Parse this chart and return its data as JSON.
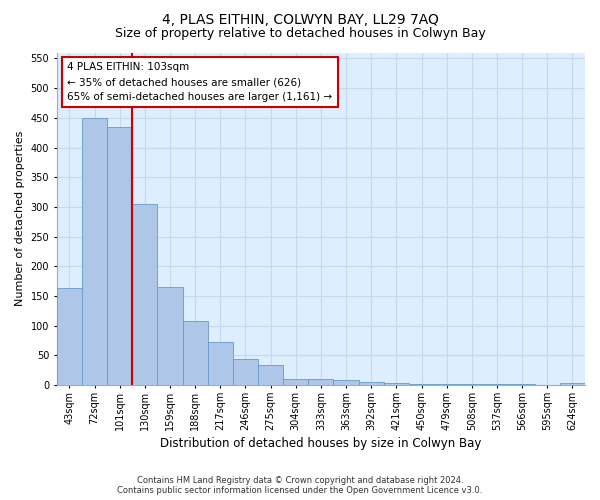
{
  "title": "4, PLAS EITHIN, COLWYN BAY, LL29 7AQ",
  "subtitle": "Size of property relative to detached houses in Colwyn Bay",
  "xlabel": "Distribution of detached houses by size in Colwyn Bay",
  "ylabel": "Number of detached properties",
  "categories": [
    "43sqm",
    "72sqm",
    "101sqm",
    "130sqm",
    "159sqm",
    "188sqm",
    "217sqm",
    "246sqm",
    "275sqm",
    "304sqm",
    "333sqm",
    "363sqm",
    "392sqm",
    "421sqm",
    "450sqm",
    "479sqm",
    "508sqm",
    "537sqm",
    "566sqm",
    "595sqm",
    "624sqm"
  ],
  "values": [
    163,
    450,
    435,
    305,
    165,
    107,
    73,
    44,
    33,
    10,
    10,
    8,
    5,
    3,
    2,
    1,
    1,
    1,
    1,
    0,
    4
  ],
  "bar_color": "#aec6e8",
  "bar_edge_color": "#6699cc",
  "vline_color": "#cc0000",
  "vline_index": 2,
  "annotation_text": "4 PLAS EITHIN: 103sqm\n← 35% of detached houses are smaller (626)\n65% of semi-detached houses are larger (1,161) →",
  "annotation_box_facecolor": "#ffffff",
  "annotation_box_edgecolor": "#cc0000",
  "ylim": [
    0,
    560
  ],
  "yticks": [
    0,
    50,
    100,
    150,
    200,
    250,
    300,
    350,
    400,
    450,
    500,
    550
  ],
  "grid_color": "#c5d8ee",
  "background_color": "#ddeeff",
  "footer": "Contains HM Land Registry data © Crown copyright and database right 2024.\nContains public sector information licensed under the Open Government Licence v3.0.",
  "title_fontsize": 10,
  "subtitle_fontsize": 9,
  "xlabel_fontsize": 8.5,
  "ylabel_fontsize": 8,
  "tick_fontsize": 7,
  "annotation_fontsize": 7.5,
  "footer_fontsize": 6
}
